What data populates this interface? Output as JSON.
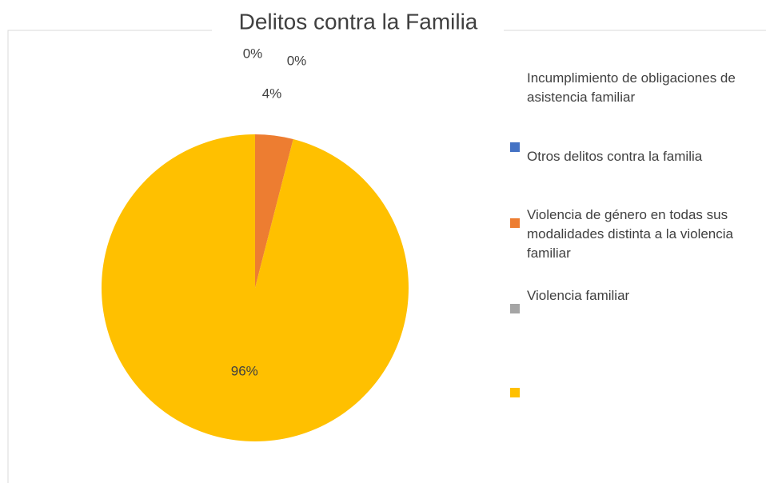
{
  "chart_data": {
    "type": "pie",
    "title": "Delitos contra la Familia",
    "legend_note": "Incumplimiento de obligaciones de asistencia familiar",
    "categories": [
      "Otros delitos contra la familia",
      "Violencia de género en todas sus modalidades distinta a la violencia familiar",
      "Violencia familiar",
      null
    ],
    "values": [
      0,
      4,
      0,
      96
    ],
    "value_labels": [
      "0%",
      "4%",
      "0%",
      "96%"
    ],
    "colors": [
      "#4472c4",
      "#ed7d31",
      "#a5a5a5",
      "#ffc000"
    ],
    "legend": "right"
  }
}
